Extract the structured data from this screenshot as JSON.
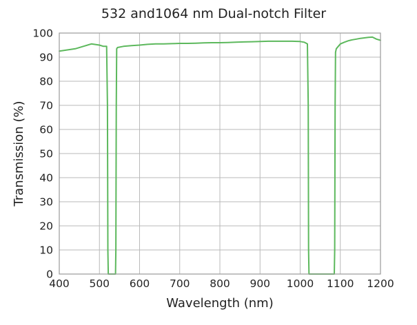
{
  "chart_data": {
    "type": "line",
    "title": "532 and1064 nm Dual-notch Filter",
    "xlabel": "Wavelength (nm)",
    "ylabel": "Transmission (%)",
    "xlim": [
      400,
      1200
    ],
    "ylim": [
      0,
      100
    ],
    "xticks": [
      "400",
      "500",
      "600",
      "700",
      "800",
      "900",
      "1000",
      "1100",
      "1200"
    ],
    "yticks": [
      "0",
      "10",
      "20",
      "30",
      "40",
      "50",
      "60",
      "70",
      "80",
      "90",
      "100"
    ],
    "grid": true,
    "legend": "none",
    "colors": {
      "line": "#5cb85c"
    },
    "series": [
      {
        "x": [
          400,
          420,
          440,
          460,
          480,
          500,
          510,
          518,
          520,
          521,
          522,
          523,
          540,
          541,
          542,
          543,
          545,
          560,
          580,
          600,
          620,
          640,
          660,
          680,
          700,
          720,
          740,
          760,
          780,
          800,
          820,
          840,
          860,
          880,
          900,
          920,
          940,
          960,
          980,
          1000,
          1010,
          1018,
          1020,
          1021,
          1022,
          1023,
          1085,
          1086,
          1087,
          1088,
          1090,
          1095,
          1100,
          1110,
          1120,
          1130,
          1140,
          1150,
          1160,
          1170,
          1180,
          1190,
          1200
        ],
        "y": [
          92.5,
          93.0,
          93.5,
          94.5,
          95.5,
          95.0,
          94.5,
          94.5,
          70,
          10,
          0,
          0,
          0,
          10,
          70,
          93.5,
          94.0,
          94.5,
          94.8,
          95.0,
          95.3,
          95.5,
          95.5,
          95.6,
          95.7,
          95.7,
          95.8,
          95.9,
          96.0,
          96.0,
          96.1,
          96.2,
          96.3,
          96.4,
          96.5,
          96.6,
          96.6,
          96.6,
          96.6,
          96.5,
          96.2,
          95.5,
          70,
          10,
          0,
          0,
          0,
          10,
          70,
          92.0,
          93.5,
          94.5,
          95.5,
          96.2,
          96.8,
          97.2,
          97.5,
          97.8,
          98.0,
          98.2,
          98.3,
          97.5,
          97.0
        ]
      }
    ]
  }
}
